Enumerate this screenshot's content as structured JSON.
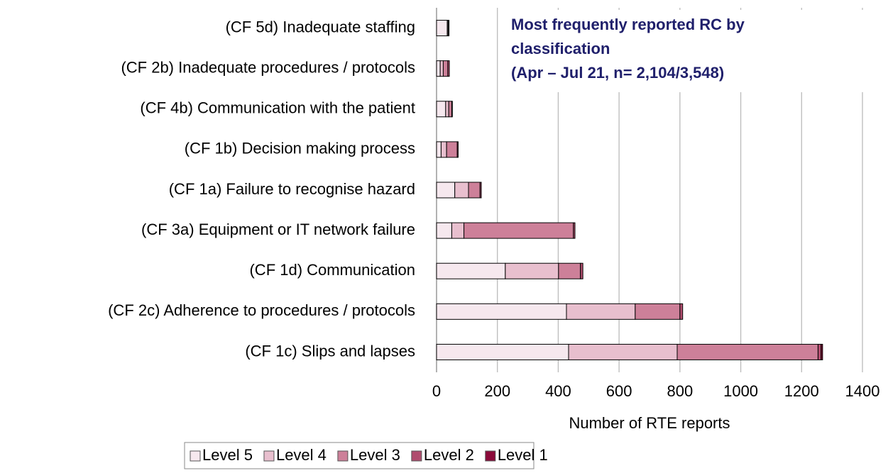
{
  "chart_data": {
    "type": "stacked-barh",
    "title_lines": [
      "Most frequently reported RC by",
      "classification",
      "(Apr – Jul 21, n= 2,104/3,548)"
    ],
    "categories": [
      "(CF 5d) Inadequate staffing",
      "(CF 2b) Inadequate procedures / protocols",
      "(CF 4b) Communication with the patient",
      "(CF 1b) Decision making process",
      "(CF 1a) Failure to recognise hazard",
      "(CF 3a) Equipment or IT network failure",
      "(CF 1d) Communication",
      "(CF 2c) Adherence to procedures / protocols",
      "(CF 1c) Slips and lapses"
    ],
    "series": [
      {
        "name": "Level 5",
        "color": "#f6e8ee",
        "values": [
          35,
          12,
          30,
          15,
          60,
          50,
          226,
          427,
          434
        ]
      },
      {
        "name": "Level 4",
        "color": "#e8bfce",
        "values": [
          3,
          10,
          10,
          18,
          45,
          40,
          175,
          226,
          357
        ]
      },
      {
        "name": "Level 3",
        "color": "#cd8099",
        "values": [
          2,
          15,
          10,
          35,
          38,
          360,
          72,
          147,
          463
        ]
      },
      {
        "name": "Level 2",
        "color": "#b04d6e",
        "values": [
          1,
          5,
          2,
          3,
          4,
          5,
          8,
          9,
          10
        ]
      },
      {
        "name": "Level 1",
        "color": "#8b0a3a",
        "values": [
          0,
          0,
          0,
          0,
          0,
          0,
          0,
          0,
          5
        ]
      }
    ],
    "xlabel": "Number of RTE reports",
    "xlim": [
      0,
      1400
    ],
    "xticks": [
      0,
      200,
      400,
      600,
      800,
      1000,
      1200,
      1400
    ],
    "grid": true,
    "legend": "bottom"
  }
}
